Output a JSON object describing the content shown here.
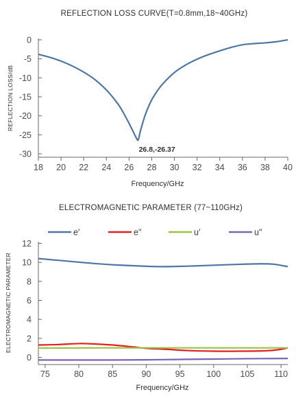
{
  "chart_data": [
    {
      "type": "line",
      "title": "REFLECTION LOSS CURVE(T=0.8mm,18~40GHz)",
      "xlabel": "Frequency/GHz",
      "ylabel": "REFLECTION LOSS/dB",
      "xlim": [
        18,
        40
      ],
      "ylim": [
        -30,
        0
      ],
      "xticks": [
        18,
        20,
        22,
        24,
        26,
        28,
        30,
        32,
        34,
        36,
        38,
        40
      ],
      "yticks": [
        0,
        -5,
        -10,
        -15,
        -20,
        -25,
        -30
      ],
      "grid": false,
      "series": [
        {
          "color": "#4a77a8",
          "x": [
            18,
            19,
            20,
            21,
            22,
            23,
            24,
            25,
            25.5,
            26,
            26.4,
            26.6,
            26.8,
            27,
            27.3,
            27.6,
            28,
            28.5,
            29,
            30,
            31,
            32,
            33,
            34,
            35,
            36,
            37,
            38,
            39,
            40
          ],
          "y": [
            -3.8,
            -4.6,
            -5.6,
            -6.9,
            -8.5,
            -10.5,
            -13.2,
            -16.8,
            -19.2,
            -22.0,
            -24.4,
            -25.6,
            -26.37,
            -24.0,
            -20.9,
            -18.4,
            -15.8,
            -13.4,
            -11.5,
            -8.6,
            -6.6,
            -5.1,
            -3.9,
            -2.9,
            -2.0,
            -1.3,
            -1.0,
            -0.8,
            -0.5,
            0.0
          ]
        }
      ],
      "annotations": [
        {
          "text": "26.8,-26.37",
          "x": 26.8,
          "y": -26.37
        }
      ]
    },
    {
      "type": "line",
      "title": "ELECTROMAGNETIC PARAMETER (77~110GHz)",
      "xlabel": "Frequency/GHz",
      "ylabel": "ELECTROMAGNETIC PARAMETER",
      "xlim": [
        74,
        111
      ],
      "ylim": [
        -0.6,
        12
      ],
      "xticks": [
        75,
        80,
        85,
        90,
        95,
        100,
        105,
        110
      ],
      "yticks": [
        0,
        2,
        4,
        6,
        8,
        10,
        12
      ],
      "grid": false,
      "legend_position": "top",
      "series": [
        {
          "name": "e′",
          "color": "#4a77a8",
          "x": [
            74,
            78,
            82,
            85,
            88,
            92,
            96,
            100,
            104,
            107,
            109,
            111
          ],
          "y": [
            10.4,
            10.15,
            9.9,
            9.75,
            9.65,
            9.55,
            9.6,
            9.7,
            9.8,
            9.85,
            9.8,
            9.55
          ]
        },
        {
          "name": "e\"",
          "color": "#e02020",
          "x": [
            74,
            77,
            80,
            82,
            85,
            88,
            90,
            93,
            96,
            100,
            104,
            108,
            110,
            111
          ],
          "y": [
            1.3,
            1.35,
            1.45,
            1.42,
            1.3,
            1.1,
            0.95,
            0.85,
            0.72,
            0.65,
            0.65,
            0.7,
            0.85,
            1.0
          ]
        },
        {
          "name": "u′",
          "color": "#9ec240",
          "x": [
            74,
            80,
            85,
            90,
            95,
            100,
            105,
            111
          ],
          "y": [
            0.98,
            0.99,
            1.0,
            1.0,
            1.0,
            1.0,
            1.0,
            1.0
          ]
        },
        {
          "name": "u\"",
          "color": "#7b63b0",
          "x": [
            74,
            80,
            85,
            90,
            95,
            100,
            105,
            111
          ],
          "y": [
            -0.28,
            -0.28,
            -0.28,
            -0.26,
            -0.22,
            -0.18,
            -0.14,
            -0.12
          ]
        }
      ]
    }
  ]
}
